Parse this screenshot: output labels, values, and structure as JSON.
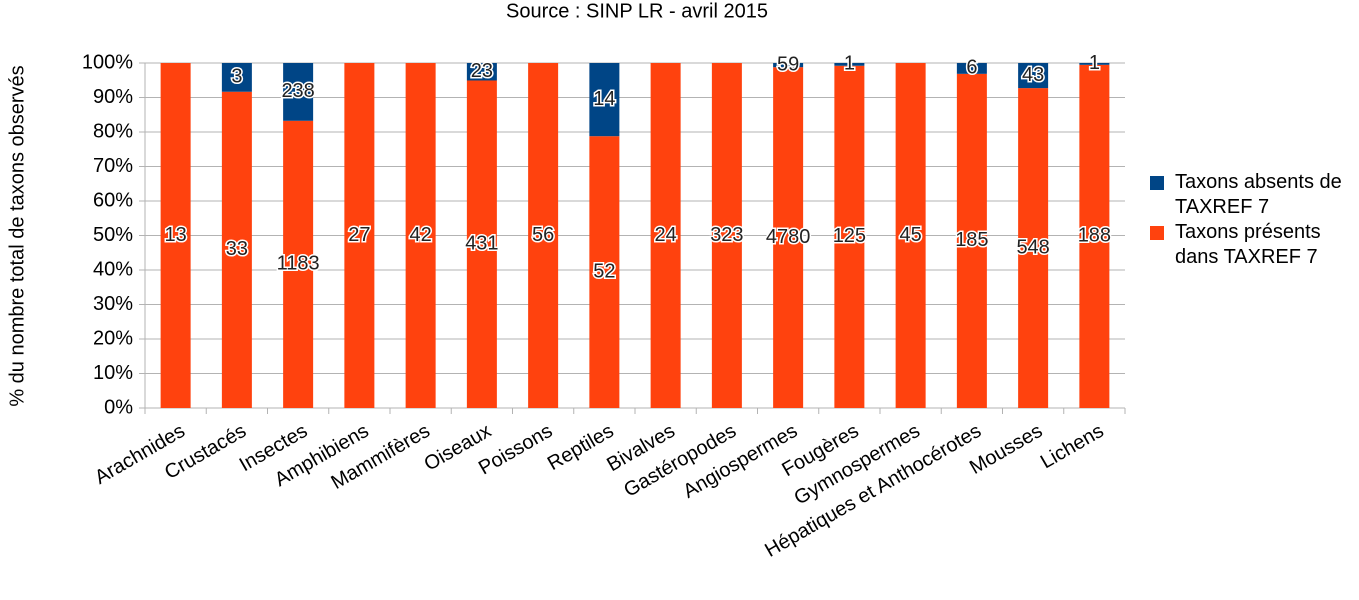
{
  "chart_data": {
    "type": "bar",
    "stacking": "percent",
    "title": "Source : SINP LR - avril 2015",
    "ylabel": "% du nombre total de taxons observés",
    "categories": [
      "Arachnides",
      "Crustacés",
      "Insectes",
      "Amphibiens",
      "Mammifères",
      "Oiseaux",
      "Poissons",
      "Reptiles",
      "Bivalves",
      "Gastéropodes",
      "Angiospermes",
      "Fougères",
      "Gymnospermes",
      "Hépatiques et Anthocérotes",
      "Mousses",
      "Lichens"
    ],
    "series": [
      {
        "name": "Taxons présents dans TAXREF 7",
        "color": "#ff420e",
        "values": [
          13,
          33,
          1183,
          27,
          42,
          431,
          56,
          52,
          24,
          323,
          4780,
          125,
          45,
          185,
          548,
          188
        ]
      },
      {
        "name": "Taxons absents de TAXREF 7",
        "color": "#004586",
        "values": [
          0,
          3,
          238,
          0,
          0,
          23,
          0,
          14,
          0,
          0,
          59,
          1,
          0,
          6,
          43,
          1
        ]
      }
    ],
    "ylim": [
      0,
      100
    ],
    "yticks": [
      {
        "value": 0,
        "label": "0%"
      },
      {
        "value": 10,
        "label": "10%"
      },
      {
        "value": 20,
        "label": "20%"
      },
      {
        "value": 30,
        "label": "30%"
      },
      {
        "value": 40,
        "label": "40%"
      },
      {
        "value": 50,
        "label": "50%"
      },
      {
        "value": 60,
        "label": "60%"
      },
      {
        "value": 70,
        "label": "70%"
      },
      {
        "value": 80,
        "label": "80%"
      },
      {
        "value": 90,
        "label": "90%"
      },
      {
        "value": 100,
        "label": "100%"
      }
    ],
    "grid": true,
    "legend": "right"
  }
}
